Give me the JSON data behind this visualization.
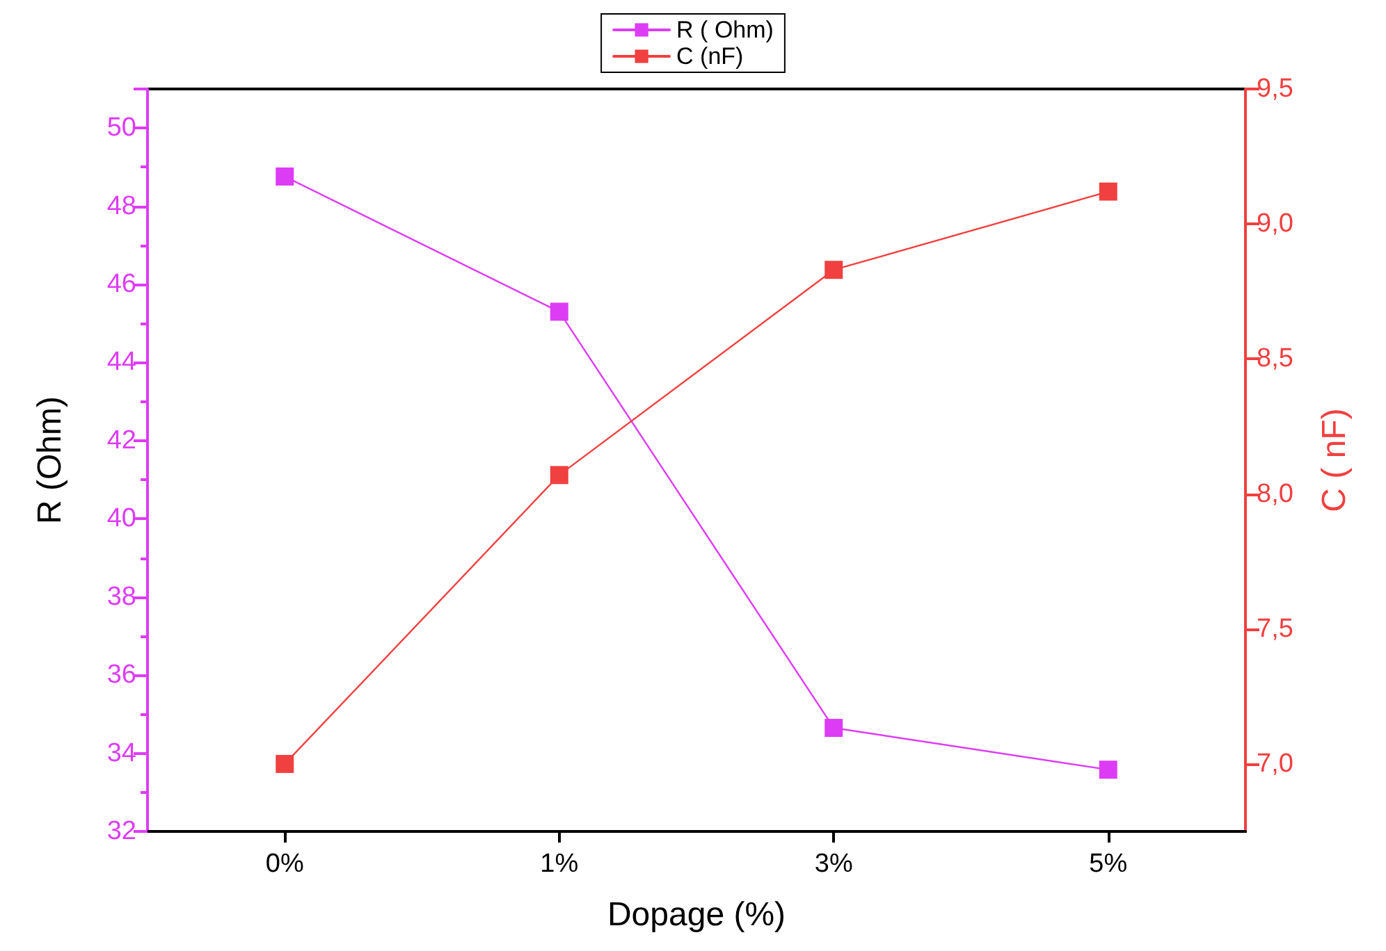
{
  "chart_data": {
    "type": "line",
    "xlabel": "Dopage (%)",
    "ylabel": "R (Ohm)",
    "y2label": "C ( nF)",
    "categories": [
      "0%",
      "1%",
      "3%",
      "5%"
    ],
    "series": [
      {
        "name": "R ( Ohm)",
        "color": "#dd3cf5",
        "values": [
          48.76,
          45.3,
          34.65,
          33.58
        ]
      },
      {
        "name": "C (nF)",
        "color": "#f04040",
        "axis": "y2",
        "values": [
          7.0,
          8.07,
          8.83,
          9.12
        ]
      }
    ],
    "ylim": [
      32,
      51
    ],
    "yticks": [
      32,
      34,
      36,
      38,
      40,
      42,
      44,
      46,
      48,
      50
    ],
    "y2lim": [
      6.75,
      9.5
    ],
    "y2ticks": [
      {
        "value": 7,
        "label": "7,0"
      },
      {
        "value": 7.5,
        "label": "7,5"
      },
      {
        "value": 8,
        "label": "8,0"
      },
      {
        "value": 8.5,
        "label": "8,5"
      },
      {
        "value": 9,
        "label": "9,0"
      },
      {
        "value": 9.5,
        "label": "9,5"
      }
    ],
    "marker": "square",
    "line_style": "solid",
    "legend": "top",
    "grid": false
  }
}
